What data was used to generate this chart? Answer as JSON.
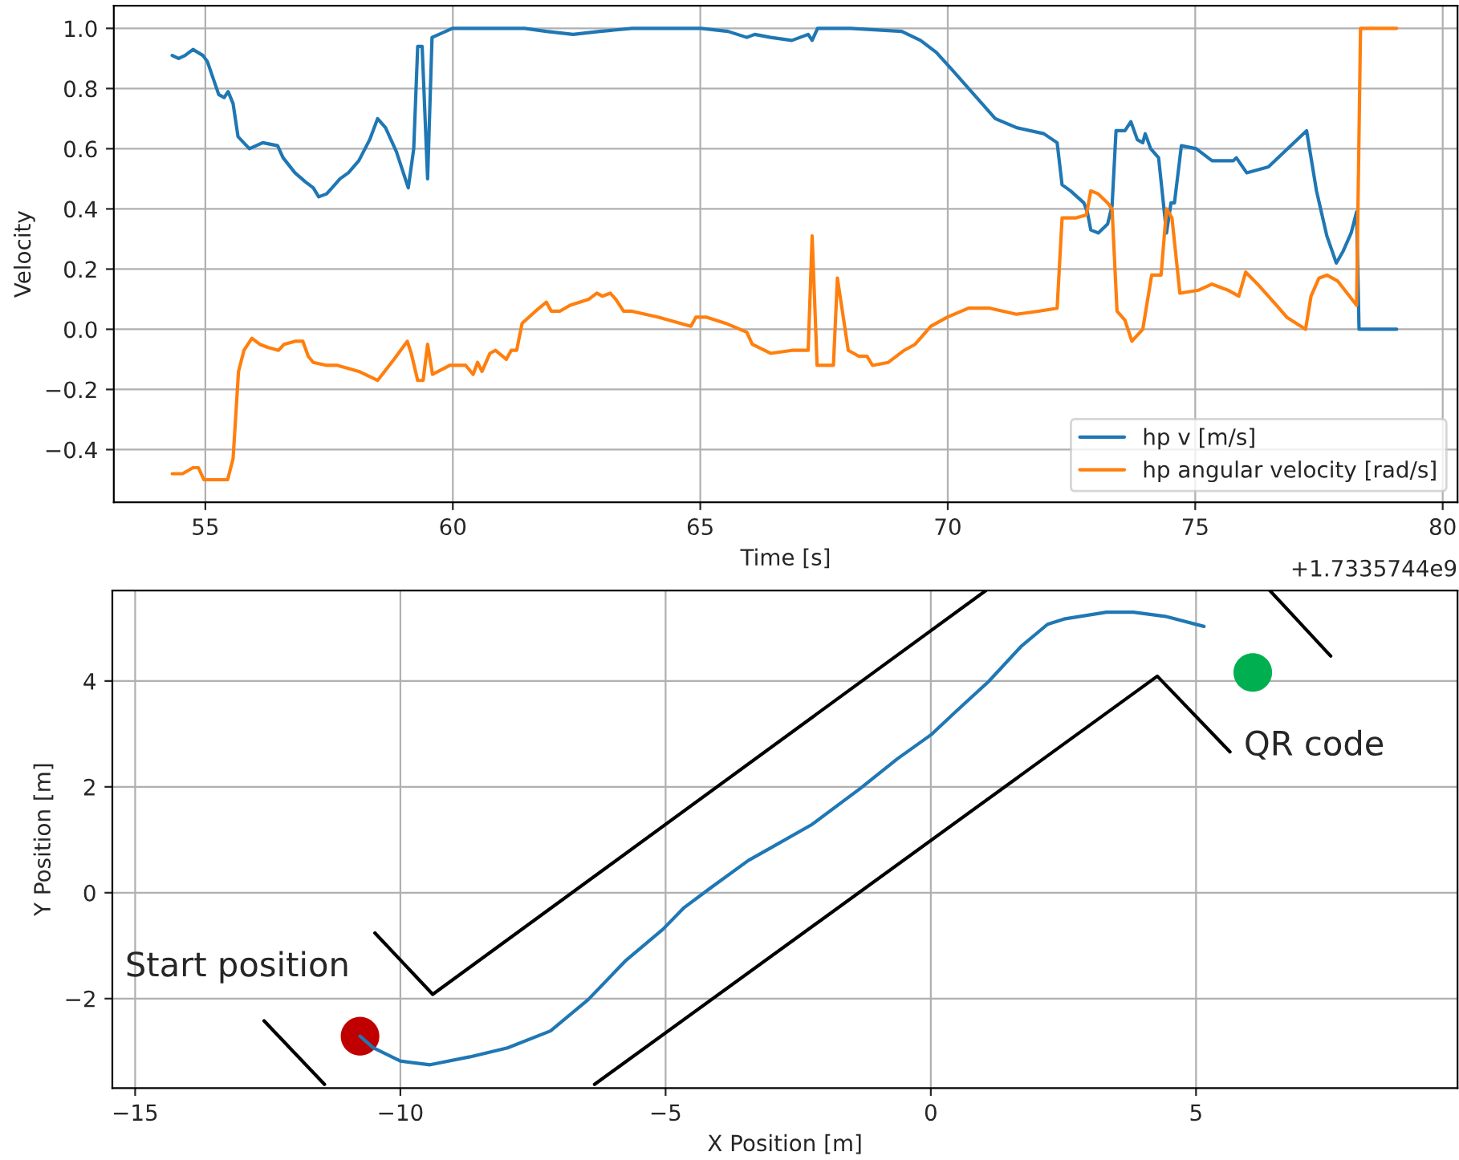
{
  "chart_data": [
    {
      "type": "line",
      "xlabel": "Time [s]",
      "ylabel": "Velocity",
      "legend": "bottom right",
      "grid": true,
      "xlim": [
        53.15,
        80.3
      ],
      "ylim": [
        -0.575,
        1.075
      ],
      "xticks": [
        55,
        60,
        65,
        70,
        75,
        80
      ],
      "yticks": [
        {
          "value": -0.4,
          "label": "−0.4"
        },
        {
          "value": -0.2,
          "label": "−0.2"
        },
        {
          "value": 0,
          "label": "0.0"
        },
        {
          "value": 0.2,
          "label": "0.2"
        },
        {
          "value": 0.4,
          "label": "0.4"
        },
        {
          "value": 0.6,
          "label": "0.6"
        },
        {
          "value": 0.8,
          "label": "0.8"
        },
        {
          "value": 1,
          "label": "1.0"
        }
      ],
      "annotations": [
        "+1.7335744e9"
      ],
      "series": [
        {
          "name": "hp v [m/s]",
          "color": "#1f77b4",
          "x": [
            54.33,
            54.46,
            54.59,
            54.75,
            54.95,
            55.04,
            55.27,
            55.38,
            55.46,
            55.56,
            55.66,
            55.89,
            56.16,
            56.46,
            56.57,
            56.81,
            57.02,
            57.18,
            57.29,
            57.45,
            57.56,
            57.72,
            57.89,
            58.1,
            58.32,
            58.48,
            58.64,
            58.86,
            59.1,
            59.21,
            59.29,
            59.38,
            59.49,
            59.58,
            59.72,
            59.99,
            60.37,
            61.45,
            61.89,
            62.43,
            62.97,
            63.62,
            64.7,
            65.02,
            65.56,
            65.94,
            66.1,
            66.42,
            66.85,
            67.18,
            67.26,
            67.37,
            68.04,
            69.07,
            69.45,
            69.77,
            70.1,
            70.53,
            70.96,
            71.39,
            71.94,
            72.21,
            72.31,
            72.48,
            72.75,
            72.82,
            72.89,
            73.04,
            73.23,
            73.32,
            73.4,
            73.58,
            73.7,
            73.83,
            73.94,
            73.99,
            74.1,
            74.26,
            74.42,
            74.51,
            74.58,
            74.72,
            75.02,
            75.34,
            75.77,
            75.83,
            76.04,
            76.48,
            76.8,
            77.25,
            77.45,
            77.66,
            77.85,
            77.99,
            78.15,
            78.26,
            78.31,
            79.07
          ],
          "values": [
            0.91,
            0.9,
            0.91,
            0.93,
            0.91,
            0.89,
            0.78,
            0.77,
            0.79,
            0.75,
            0.64,
            0.6,
            0.62,
            0.61,
            0.57,
            0.52,
            0.49,
            0.47,
            0.44,
            0.45,
            0.47,
            0.5,
            0.52,
            0.56,
            0.63,
            0.7,
            0.67,
            0.59,
            0.47,
            0.6,
            0.94,
            0.94,
            0.5,
            0.97,
            0.98,
            1.0,
            1.0,
            1.0,
            0.99,
            0.98,
            0.99,
            1.0,
            1.0,
            1.0,
            0.99,
            0.97,
            0.98,
            0.97,
            0.96,
            0.98,
            0.96,
            1.0,
            1.0,
            0.99,
            0.96,
            0.92,
            0.86,
            0.78,
            0.7,
            0.67,
            0.65,
            0.62,
            0.48,
            0.46,
            0.42,
            0.39,
            0.33,
            0.32,
            0.35,
            0.41,
            0.66,
            0.66,
            0.69,
            0.63,
            0.62,
            0.65,
            0.6,
            0.57,
            0.32,
            0.42,
            0.42,
            0.61,
            0.6,
            0.56,
            0.56,
            0.57,
            0.52,
            0.54,
            0.59,
            0.66,
            0.46,
            0.31,
            0.22,
            0.26,
            0.32,
            0.39,
            0.0,
            0.0
          ]
        },
        {
          "name": "hp angular velocity [rad/s]",
          "color": "#ff7f0e",
          "x": [
            54.33,
            54.54,
            54.75,
            54.86,
            54.97,
            55.45,
            55.56,
            55.67,
            55.78,
            55.94,
            56.1,
            56.26,
            56.48,
            56.59,
            56.81,
            56.97,
            57.08,
            57.18,
            57.45,
            57.67,
            58.1,
            58.48,
            58.81,
            59.08,
            59.16,
            59.29,
            59.4,
            59.49,
            59.59,
            59.94,
            60.26,
            60.41,
            60.5,
            60.59,
            60.75,
            60.86,
            61.08,
            61.18,
            61.29,
            61.4,
            61.67,
            61.89,
            61.99,
            62.16,
            62.37,
            62.75,
            62.91,
            63.02,
            63.18,
            63.29,
            63.45,
            63.62,
            64.16,
            64.81,
            64.91,
            65.13,
            65.51,
            65.94,
            66.05,
            66.42,
            66.85,
            67.18,
            67.26,
            67.36,
            67.69,
            67.77,
            67.99,
            68.21,
            68.37,
            68.48,
            68.8,
            69.12,
            69.34,
            69.66,
            69.99,
            70.42,
            70.85,
            71.39,
            71.83,
            72.21,
            72.31,
            72.58,
            72.8,
            72.89,
            73.04,
            73.23,
            73.32,
            73.42,
            73.58,
            73.72,
            73.94,
            74.12,
            74.31,
            74.42,
            74.53,
            74.69,
            75.07,
            75.34,
            75.66,
            75.88,
            76.02,
            76.26,
            76.64,
            76.85,
            77.23,
            77.34,
            77.5,
            77.66,
            77.88,
            78.26,
            78.34,
            79.07
          ],
          "values": [
            -0.48,
            -0.48,
            -0.46,
            -0.46,
            -0.5,
            -0.5,
            -0.43,
            -0.14,
            -0.07,
            -0.03,
            -0.05,
            -0.06,
            -0.07,
            -0.05,
            -0.04,
            -0.04,
            -0.09,
            -0.11,
            -0.12,
            -0.12,
            -0.14,
            -0.17,
            -0.1,
            -0.04,
            -0.08,
            -0.17,
            -0.17,
            -0.05,
            -0.15,
            -0.12,
            -0.12,
            -0.15,
            -0.11,
            -0.14,
            -0.08,
            -0.07,
            -0.1,
            -0.07,
            -0.07,
            0.02,
            0.06,
            0.09,
            0.06,
            0.06,
            0.08,
            0.1,
            0.12,
            0.11,
            0.12,
            0.1,
            0.06,
            0.06,
            0.04,
            0.01,
            0.04,
            0.04,
            0.02,
            -0.01,
            -0.05,
            -0.08,
            -0.07,
            -0.07,
            0.31,
            -0.12,
            -0.12,
            0.17,
            -0.07,
            -0.09,
            -0.09,
            -0.12,
            -0.11,
            -0.07,
            -0.05,
            0.01,
            0.04,
            0.07,
            0.07,
            0.05,
            0.06,
            0.07,
            0.37,
            0.37,
            0.38,
            0.46,
            0.45,
            0.42,
            0.4,
            0.06,
            0.03,
            -0.04,
            0.0,
            0.18,
            0.18,
            0.4,
            0.37,
            0.12,
            0.13,
            0.15,
            0.13,
            0.11,
            0.19,
            0.15,
            0.08,
            0.04,
            0.0,
            0.11,
            0.17,
            0.18,
            0.16,
            0.08,
            1.0,
            1.0
          ]
        }
      ]
    },
    {
      "type": "line",
      "xlabel": "X Position [m]",
      "ylabel": "Y Position [m]",
      "legend": false,
      "grid": true,
      "xlim": [
        -15.43,
        9.93
      ],
      "ylim": [
        -3.69,
        5.71
      ],
      "xticks": [
        {
          "value": -15,
          "label": "−15"
        },
        {
          "value": -10,
          "label": "−10"
        },
        {
          "value": -5,
          "label": "−5"
        },
        0,
        5
      ],
      "yticks": [
        {
          "value": -2,
          "label": "−2"
        },
        0,
        2,
        4
      ],
      "annotations": [
        {
          "text": "Start position",
          "x": -10.76,
          "y": -2.71
        },
        {
          "text": "QR code",
          "x": 6.07,
          "y": 4.16
        }
      ],
      "series": [
        {
          "type": "line",
          "color": "#1f77b4",
          "x": [
            -10.76,
            -10.51,
            -10.0,
            -9.44,
            -8.69,
            -7.98,
            -7.17,
            -6.46,
            -5.76,
            -5.05,
            -4.65,
            -4.14,
            -3.44,
            -3.05,
            -2.24,
            -1.33,
            -0.63,
            0.0,
            0.48,
            1.09,
            1.7,
            2.2,
            2.51,
            3.31,
            3.82,
            4.42,
            5.15
          ],
          "values": [
            -2.71,
            -2.93,
            -3.18,
            -3.25,
            -3.1,
            -2.93,
            -2.61,
            -2.02,
            -1.29,
            -0.69,
            -0.28,
            0.1,
            0.61,
            0.83,
            1.29,
            1.97,
            2.53,
            2.98,
            3.43,
            3.99,
            4.65,
            5.07,
            5.17,
            5.3,
            5.3,
            5.22,
            5.03
          ]
        },
        {
          "type": "line",
          "color": "#000000",
          "x": [
            -10.48,
            -9.39,
            1.04
          ],
          "values": [
            -0.76,
            -1.92,
            5.71
          ]
        },
        {
          "type": "line",
          "color": "#000000",
          "x": [
            -12.57,
            -11.43
          ],
          "values": [
            -2.42,
            -3.62
          ]
        },
        {
          "type": "line",
          "color": "#000000",
          "x": [
            -6.34,
            4.27,
            5.64
          ],
          "values": [
            -3.62,
            4.09,
            2.66
          ]
        },
        {
          "type": "line",
          "color": "#000000",
          "x": [
            6.39,
            7.54
          ],
          "values": [
            5.71,
            4.47
          ]
        },
        {
          "type": "scatter",
          "marker": "circle",
          "color": "#c00000",
          "x": [
            -10.76
          ],
          "values": [
            -2.71
          ]
        },
        {
          "type": "scatter",
          "marker": "circle",
          "color": "#00b050",
          "x": [
            6.07
          ],
          "values": [
            4.16
          ]
        }
      ]
    }
  ]
}
